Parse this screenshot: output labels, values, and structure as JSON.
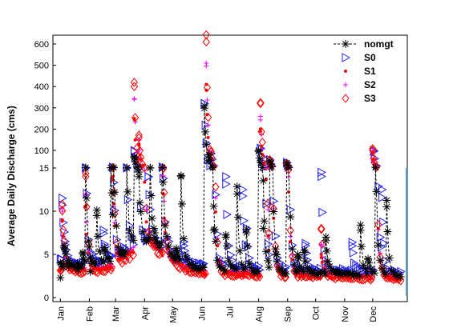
{
  "chart_data": {
    "type": "line",
    "title": "",
    "xlabel": "",
    "ylabel": "Average Daily Discharge (cms)",
    "x_tick_labels": [
      "Jan",
      "Feb",
      "Mar",
      "Apr",
      "May",
      "Jun",
      "Jul",
      "Aug",
      "Sep",
      "Oct",
      "Nov",
      "Dec"
    ],
    "x_day_of_year_ticks": [
      1,
      32,
      60,
      91,
      121,
      152,
      182,
      213,
      244,
      274,
      305,
      335
    ],
    "xlim_day_of_year": [
      -7,
      372
    ],
    "y_scale": "piecewise: linear 0-15, linear 15-100 (with minor grid), linear 100-600",
    "y_tick_labels": [
      "0",
      "5",
      "10",
      "15",
      "100",
      "200",
      "300",
      "400",
      "500",
      "600"
    ],
    "y_ticks": [
      0,
      5,
      10,
      15,
      100,
      200,
      300,
      400,
      500,
      600
    ],
    "grid": true,
    "legend_position": "top-right",
    "colors": {
      "nomgt": "#000000",
      "S0": "#1f1fff",
      "S1": "#ff0000",
      "S2": "#ff00ff",
      "S3": "#ff0000"
    },
    "series": [
      {
        "name": "nomgt",
        "marker": "asterisk",
        "line": "dashed",
        "peaks": [
          [
            1,
            2.3
          ],
          [
            5,
            6
          ],
          [
            10,
            3.6
          ],
          [
            20,
            3.2
          ],
          [
            25,
            5.2
          ],
          [
            28,
            16
          ],
          [
            33,
            3
          ],
          [
            40,
            9.5
          ],
          [
            48,
            5.8
          ],
          [
            55,
            16
          ],
          [
            58,
            18
          ],
          [
            66,
            5.5
          ],
          [
            72,
            16
          ],
          [
            80,
            70
          ],
          [
            85,
            14
          ],
          [
            97,
            15
          ],
          [
            102,
            7.5
          ],
          [
            110,
            18
          ],
          [
            125,
            5.5
          ],
          [
            130,
            14
          ],
          [
            155,
            310
          ],
          [
            160,
            80
          ],
          [
            165,
            7.8
          ],
          [
            178,
            7
          ],
          [
            190,
            12
          ],
          [
            200,
            7.5
          ],
          [
            213,
            100
          ],
          [
            218,
            8
          ],
          [
            225,
            50
          ],
          [
            232,
            5
          ],
          [
            243,
            40
          ],
          [
            255,
            5
          ],
          [
            262,
            5.5
          ],
          [
            285,
            7
          ],
          [
            297,
            3
          ],
          [
            322,
            7.8
          ],
          [
            330,
            4.5
          ],
          [
            338,
            18
          ],
          [
            350,
            10.5
          ]
        ],
        "baseline_start": 3.8,
        "baseline_end": 2.5
      },
      {
        "name": "S0",
        "marker": "triangle-right",
        "peaks": [
          [
            3,
            11.5
          ],
          [
            6,
            6.5
          ],
          [
            28,
            16
          ],
          [
            47,
            7.8
          ],
          [
            57,
            18
          ],
          [
            72,
            16
          ],
          [
            80,
            95
          ],
          [
            95,
            14
          ],
          [
            110,
            18
          ],
          [
            133,
            6
          ],
          [
            155,
            320
          ],
          [
            162,
            85
          ],
          [
            178,
            14
          ],
          [
            196,
            12.5
          ],
          [
            200,
            8
          ],
          [
            215,
            110
          ],
          [
            225,
            55
          ],
          [
            243,
            42
          ],
          [
            263,
            6
          ],
          [
            280,
            14.5
          ],
          [
            313,
            6
          ],
          [
            336,
            100
          ],
          [
            345,
            12.5
          ]
        ],
        "baseline_start": 4.2,
        "baseline_end": 2.9
      },
      {
        "name": "S1",
        "marker": "dot",
        "peaks": [
          [
            3,
            9
          ],
          [
            28,
            10.5
          ],
          [
            57,
            14
          ],
          [
            80,
            250
          ],
          [
            85,
            130
          ],
          [
            111,
            12
          ],
          [
            157,
            410
          ],
          [
            162,
            80
          ],
          [
            215,
            190
          ],
          [
            225,
            42
          ],
          [
            243,
            28
          ],
          [
            280,
            5
          ],
          [
            335,
            85
          ]
        ],
        "baseline_start": 3.2,
        "baseline_end": 2.2
      },
      {
        "name": "S2",
        "marker": "plus",
        "peaks": [
          [
            3,
            10
          ],
          [
            28,
            12
          ],
          [
            57,
            15
          ],
          [
            80,
            340
          ],
          [
            85,
            150
          ],
          [
            111,
            14
          ],
          [
            157,
            510
          ],
          [
            162,
            90
          ],
          [
            215,
            260
          ],
          [
            225,
            45
          ],
          [
            243,
            32
          ],
          [
            280,
            6
          ],
          [
            335,
            92
          ]
        ],
        "baseline_start": 3.5,
        "baseline_end": 2.5
      },
      {
        "name": "S3",
        "marker": "diamond",
        "peaks": [
          [
            3,
            10.8
          ],
          [
            28,
            14
          ],
          [
            57,
            17
          ],
          [
            80,
            420
          ],
          [
            85,
            160
          ],
          [
            111,
            15
          ],
          [
            157,
            610
          ],
          [
            162,
            95
          ],
          [
            215,
            320
          ],
          [
            225,
            52
          ],
          [
            243,
            35
          ],
          [
            280,
            8
          ],
          [
            335,
            100
          ]
        ],
        "baseline_start": 3.1,
        "baseline_end": 2.1
      }
    ]
  }
}
